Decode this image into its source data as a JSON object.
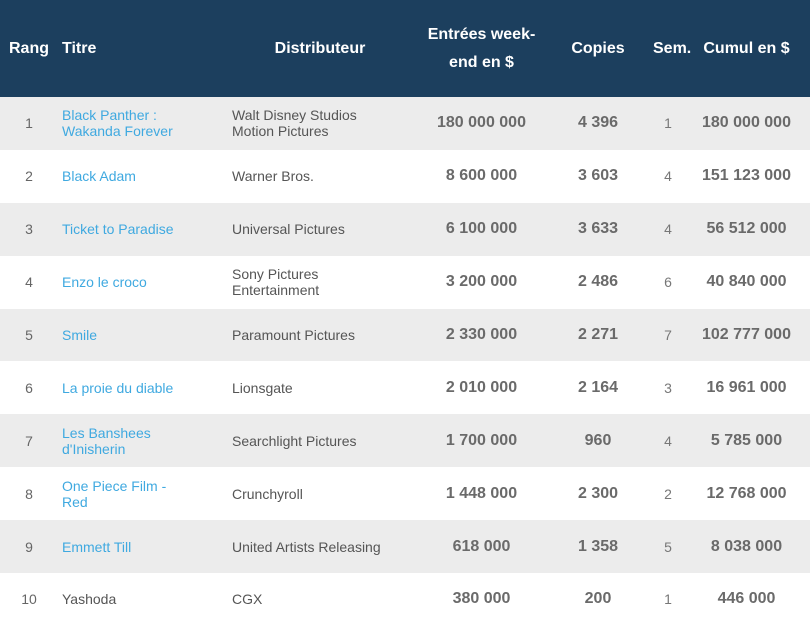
{
  "colors": {
    "header_bg": "#1c3f5e",
    "header_text": "#ffffff",
    "row_alt_bg": "#ececec",
    "link_text": "#3fa9e0",
    "body_text": "#555555"
  },
  "headers": {
    "rang": "Rang",
    "titre": "Titre",
    "distributeur": "Distributeur",
    "entrees_line1": "Entrées week-",
    "entrees_line2": "end en $",
    "copies": "Copies",
    "sem": "Sem.",
    "cumul": "Cumul en $"
  },
  "rows": [
    {
      "rang": "1",
      "titre_line1": "Black Panther :",
      "titre_line2": "Wakanda Forever",
      "dist_line1": "Walt Disney Studios",
      "dist_line2": "Motion Pictures",
      "entrees": "180 000 000",
      "copies": "4 396",
      "sem": "1",
      "cumul": "180 000 000"
    },
    {
      "rang": "2",
      "titre_line1": "Black Adam",
      "titre_line2": "",
      "dist_line1": "Warner Bros.",
      "dist_line2": "",
      "entrees": "8 600 000",
      "copies": "3 603",
      "sem": "4",
      "cumul": "151 123 000"
    },
    {
      "rang": "3",
      "titre_line1": "Ticket to Paradise",
      "titre_line2": "",
      "dist_line1": "Universal Pictures",
      "dist_line2": "",
      "entrees": "6 100 000",
      "copies": "3 633",
      "sem": "4",
      "cumul": "56 512 000"
    },
    {
      "rang": "4",
      "titre_line1": "Enzo le croco",
      "titre_line2": "",
      "dist_line1": "Sony Pictures",
      "dist_line2": "Entertainment",
      "entrees": "3 200 000",
      "copies": "2 486",
      "sem": "6",
      "cumul": "40 840 000"
    },
    {
      "rang": "5",
      "titre_line1": "Smile",
      "titre_line2": "",
      "dist_line1": "Paramount Pictures",
      "dist_line2": "",
      "entrees": "2 330 000",
      "copies": "2 271",
      "sem": "7",
      "cumul": "102 777 000"
    },
    {
      "rang": "6",
      "titre_line1": "La proie du diable",
      "titre_line2": "",
      "dist_line1": "Lionsgate",
      "dist_line2": "",
      "entrees": "2 010 000",
      "copies": "2 164",
      "sem": "3",
      "cumul": "16 961 000"
    },
    {
      "rang": "7",
      "titre_line1": "Les Banshees",
      "titre_line2": "d'Inisherin",
      "dist_line1": "Searchlight Pictures",
      "dist_line2": "",
      "entrees": "1 700 000",
      "copies": "960",
      "sem": "4",
      "cumul": "5 785 000"
    },
    {
      "rang": "8",
      "titre_line1": "One Piece Film -",
      "titre_line2": "Red",
      "dist_line1": "Crunchyroll",
      "dist_line2": "",
      "entrees": "1 448 000",
      "copies": "2 300",
      "sem": "2",
      "cumul": "12 768 000"
    },
    {
      "rang": "9",
      "titre_line1": "Emmett Till",
      "titre_line2": "",
      "dist_line1": "United Artists Releasing",
      "dist_line2": "",
      "entrees": "618 000",
      "copies": "1 358",
      "sem": "5",
      "cumul": "8 038 000"
    },
    {
      "rang": "10",
      "titre_line1": "Yashoda",
      "titre_line2": "",
      "dist_line1": "CGX",
      "dist_line2": "",
      "entrees": "380 000",
      "copies": "200",
      "sem": "1",
      "cumul": "446 000"
    }
  ]
}
